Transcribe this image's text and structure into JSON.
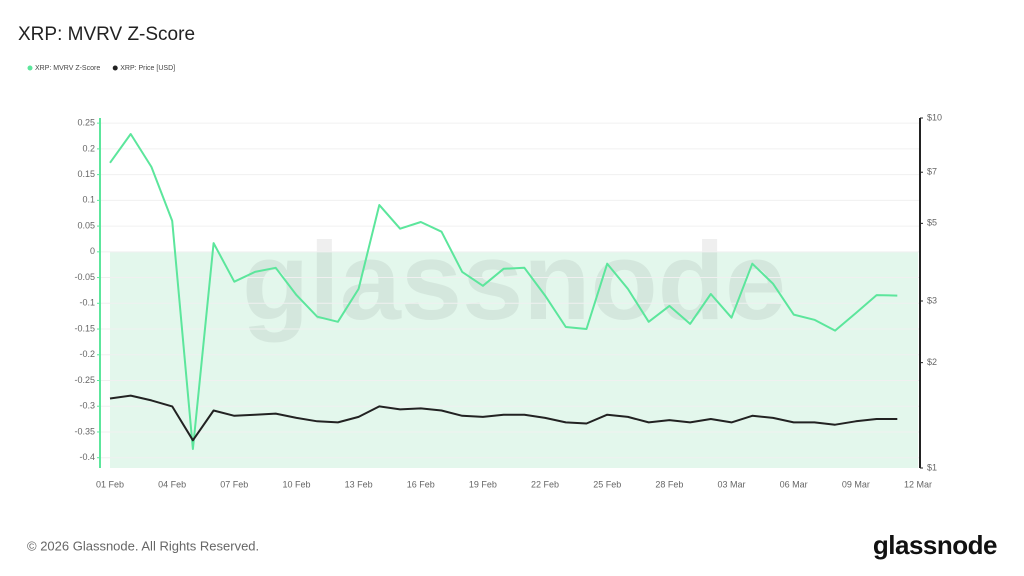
{
  "chart_data": {
    "type": "line",
    "title": "XRP: MVRV Z-Score",
    "watermark": "glassnode",
    "categories": [
      "01 Feb",
      null,
      null,
      "04 Feb",
      null,
      null,
      "07 Feb",
      null,
      null,
      "10 Feb",
      null,
      null,
      "13 Feb",
      null,
      null,
      "16 Feb",
      null,
      null,
      "19 Feb",
      null,
      null,
      "22 Feb",
      null,
      null,
      "25 Feb",
      null,
      null,
      "28 Feb",
      null,
      null,
      "03 Mar",
      null,
      null,
      "06 Mar",
      null,
      null,
      "09 Mar",
      null,
      null,
      "12 Mar"
    ],
    "series": [
      {
        "name": "XRP: MVRV Z-Score",
        "color": "#5ce69c",
        "axis": "y",
        "values": [
          0.173,
          0.229,
          0.165,
          0.06,
          -0.383,
          0.017,
          -0.058,
          -0.039,
          -0.031,
          -0.084,
          -0.126,
          -0.136,
          -0.072,
          0.091,
          0.045,
          0.058,
          0.039,
          -0.039,
          -0.066,
          -0.033,
          -0.031,
          -0.085,
          -0.146,
          -0.15,
          -0.023,
          -0.072,
          -0.136,
          -0.105,
          -0.14,
          -0.082,
          -0.128,
          -0.023,
          -0.062,
          -0.122,
          -0.132,
          -0.153,
          -0.119,
          -0.084,
          -0.085,
          null
        ]
      },
      {
        "name": "XRP: Price [USD]",
        "color": "#222222",
        "axis": "y2",
        "values": [
          1.58,
          1.61,
          1.56,
          1.5,
          1.2,
          1.46,
          1.41,
          1.42,
          1.43,
          1.39,
          1.36,
          1.35,
          1.4,
          1.5,
          1.47,
          1.48,
          1.46,
          1.41,
          1.4,
          1.42,
          1.42,
          1.39,
          1.35,
          1.34,
          1.42,
          1.4,
          1.35,
          1.37,
          1.35,
          1.38,
          1.35,
          1.41,
          1.39,
          1.35,
          1.35,
          1.33,
          1.36,
          1.38,
          1.38,
          null
        ]
      }
    ],
    "ylim": [
      -0.42,
      0.26
    ],
    "yticks": [
      0.25,
      0.2,
      0.15,
      0.1,
      0.05,
      0,
      -0.05,
      -0.1,
      -0.15,
      -0.2,
      -0.25,
      -0.3,
      -0.35,
      -0.4
    ],
    "y2lim": [
      1,
      10
    ],
    "y2log": true,
    "y2ticks": [
      {
        "value": 10,
        "label": "$10"
      },
      {
        "value": 7,
        "label": "$7"
      },
      {
        "value": 5,
        "label": "$5"
      },
      {
        "value": 3,
        "label": "$3"
      },
      {
        "value": 2,
        "label": "$2"
      },
      {
        "value": 1,
        "label": "$1"
      }
    ],
    "grid": true,
    "negative_fill": "#e3f7ec"
  },
  "footer": {
    "copyright": "© 2026 Glassnode. All Rights Reserved.",
    "logo": "glassnode"
  }
}
